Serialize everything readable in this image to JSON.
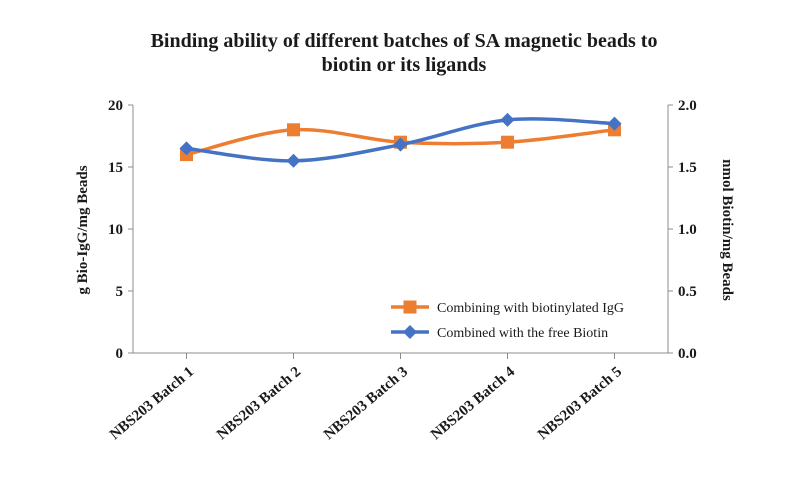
{
  "chart_data": {
    "type": "line",
    "title_lines": [
      "Binding ability of different batches of SA magnetic beads to",
      "biotin or its ligands"
    ],
    "categories": [
      "NBS203 Batch 1",
      "NBS203 Batch 2",
      "NBS203 Batch 3",
      "NBS203 Batch 4",
      "NBS203 Batch 5"
    ],
    "y_left": {
      "label": "g Bio-IgG/mg Beads",
      "range": [
        0,
        20
      ],
      "ticks": [
        "0",
        "5",
        "10",
        "15",
        "20"
      ]
    },
    "y_right": {
      "label": "nmol Biotin/mg Beads",
      "range": [
        0,
        2.0
      ],
      "ticks": [
        "0.0",
        "0.5",
        "1.0",
        "1.5",
        "2.0"
      ]
    },
    "series": [
      {
        "name": "Combining with biotinylated IgG",
        "axis": "left",
        "marker": "square",
        "color": "#ed7d31",
        "values": [
          16,
          18,
          17,
          17,
          18
        ]
      },
      {
        "name": "Combined with the free Biotin",
        "axis": "right",
        "marker": "diamond",
        "color": "#4472c4",
        "values": [
          1.65,
          1.55,
          1.68,
          1.88,
          1.85
        ]
      }
    ],
    "legend_position": "bottom-right",
    "grid": false,
    "smooth": true
  }
}
